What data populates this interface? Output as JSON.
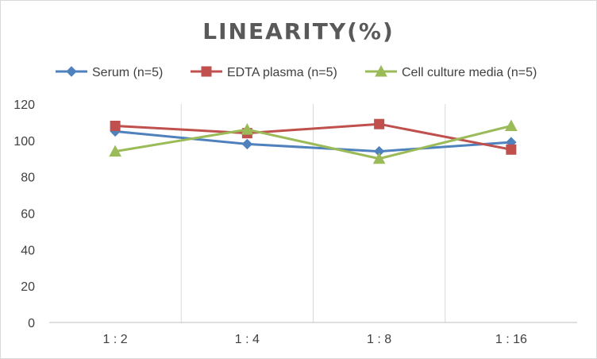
{
  "chart_data": {
    "type": "line",
    "title": "LINEARITY(%)",
    "xlabel": "",
    "ylabel": "",
    "categories": [
      "1:2",
      "1:4",
      "1:8",
      "1:16"
    ],
    "ylim": [
      0,
      120
    ],
    "yticks": [
      0,
      20,
      40,
      60,
      80,
      100,
      120
    ],
    "grid": "vertical category separators",
    "legend_position": "top",
    "series": [
      {
        "name": "Serum (n=5)",
        "values": [
          105,
          98,
          94,
          99
        ],
        "color": "#4f81bd",
        "marker": "diamond"
      },
      {
        "name": "EDTA plasma (n=5)",
        "values": [
          108,
          104,
          109,
          95
        ],
        "color": "#c0504d",
        "marker": "square"
      },
      {
        "name": "Cell culture media (n=5)",
        "values": [
          94,
          106,
          90,
          108
        ],
        "color": "#9bbb59",
        "marker": "triangle"
      }
    ]
  }
}
